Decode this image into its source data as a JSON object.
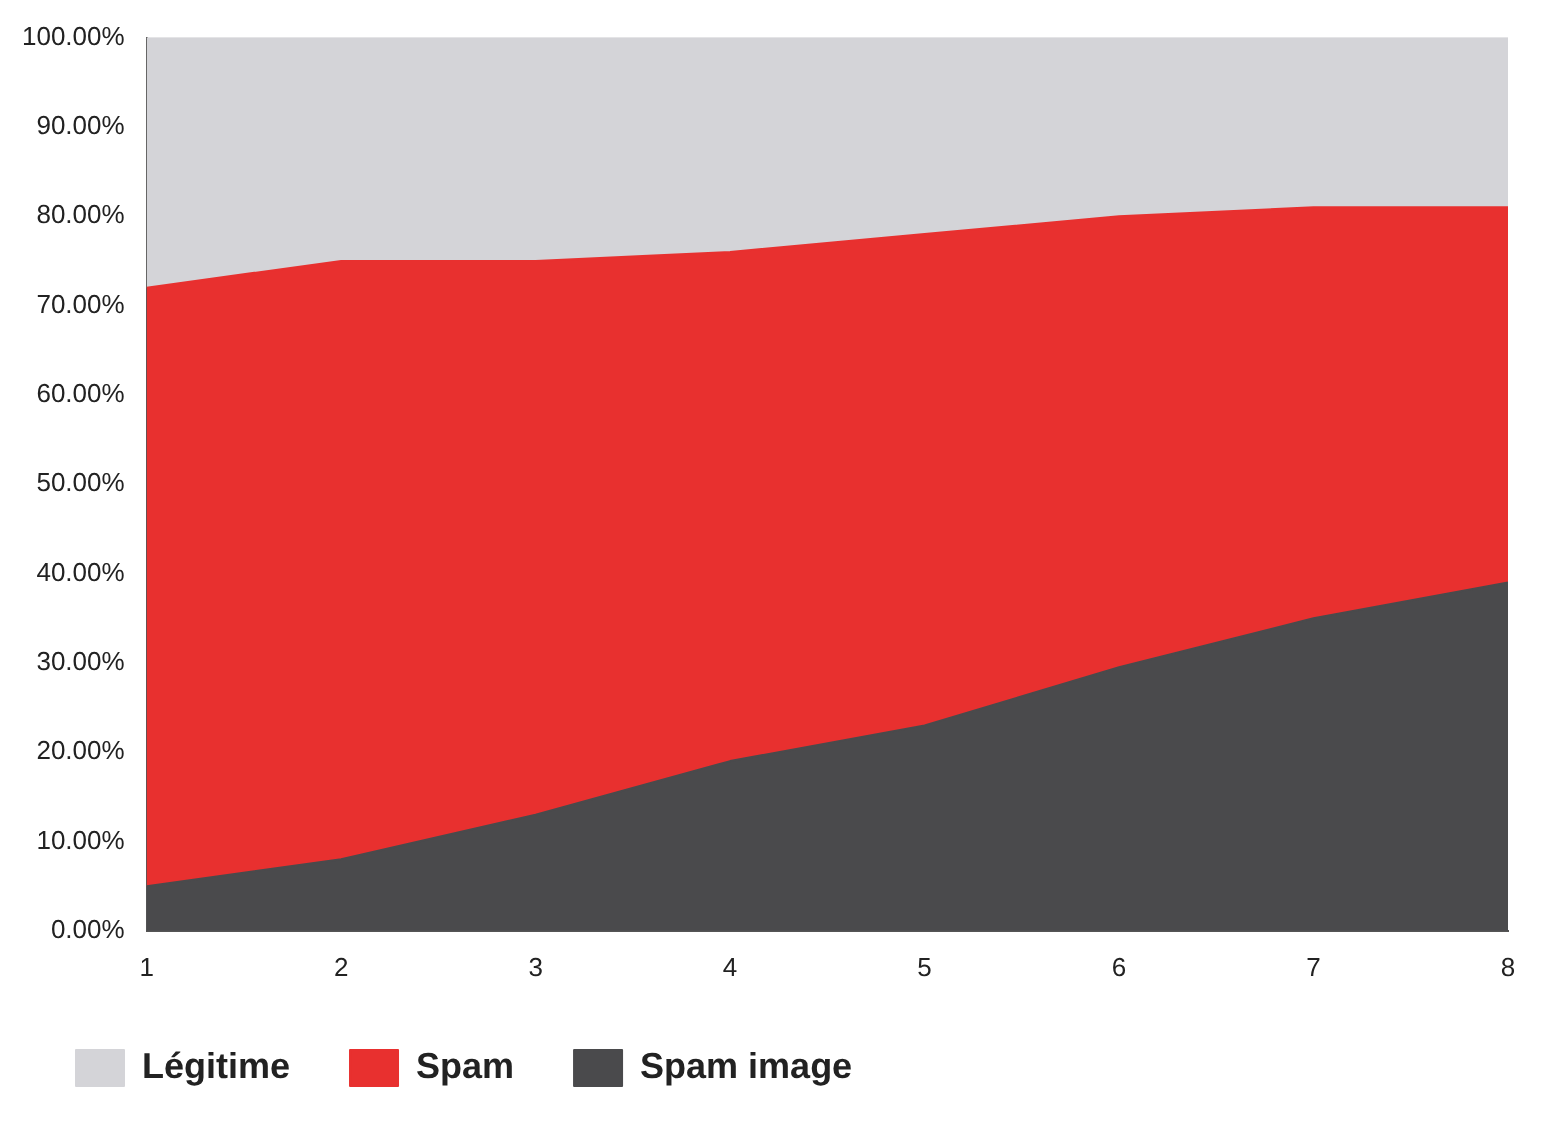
{
  "chart_data": {
    "type": "area",
    "stacked": true,
    "x": [
      1,
      2,
      3,
      4,
      5,
      6,
      7,
      8
    ],
    "series": [
      {
        "name": "Spam image",
        "color": "#4a4a4c",
        "values": [
          5,
          8,
          13,
          19,
          23,
          29.5,
          35,
          39
        ]
      },
      {
        "name": "Spam",
        "color": "#e8302f",
        "values": [
          67,
          67,
          62,
          57,
          55,
          50.5,
          46,
          42
        ]
      },
      {
        "name": "Légitime",
        "color": "#d4d4d8",
        "values": [
          28,
          25,
          25,
          24,
          22,
          20,
          19,
          19
        ]
      }
    ],
    "xlim": [
      1,
      8
    ],
    "xticks": [
      1,
      2,
      3,
      4,
      5,
      6,
      7,
      8
    ],
    "ylim": [
      0,
      100
    ],
    "yticks": [
      {
        "value": 0,
        "label": "0.00%"
      },
      {
        "value": 10,
        "label": "10.00%"
      },
      {
        "value": 20,
        "label": "20.00%"
      },
      {
        "value": 30,
        "label": "30.00%"
      },
      {
        "value": 40,
        "label": "40.00%"
      },
      {
        "value": 50,
        "label": "50.00%"
      },
      {
        "value": 60,
        "label": "60.00%"
      },
      {
        "value": 70,
        "label": "70.00%"
      },
      {
        "value": 80,
        "label": "80.00%"
      },
      {
        "value": 90,
        "label": "90.00%"
      },
      {
        "value": 100,
        "label": "100.00%"
      }
    ],
    "grid": false,
    "legend": "bottom left",
    "marker": "none"
  }
}
